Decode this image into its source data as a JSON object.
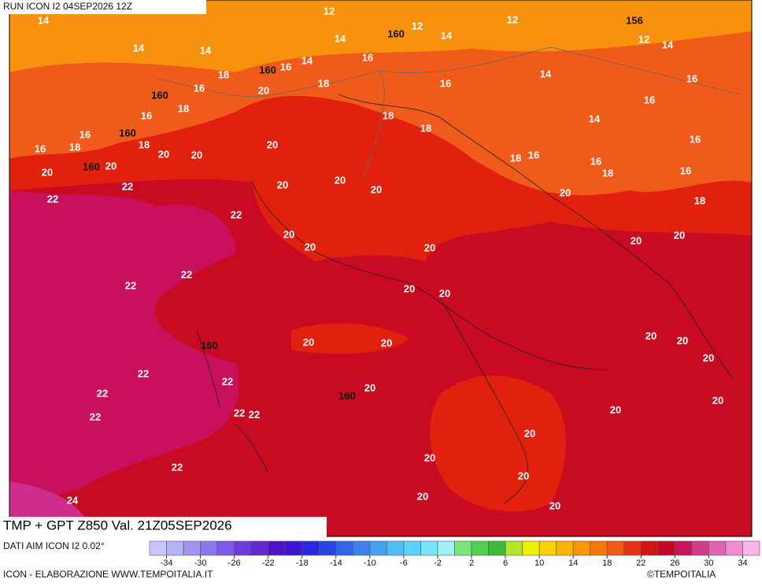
{
  "header": {
    "run": "RUN ICON I2 04SEP2026 12Z"
  },
  "map": {
    "temperature_labels": [
      14,
      12,
      12,
      12,
      12,
      14,
      14,
      14,
      14,
      14,
      16,
      14,
      16,
      18,
      18,
      16,
      20,
      16,
      14,
      16,
      16,
      18,
      16,
      18,
      14,
      18,
      16,
      16,
      20,
      18,
      18,
      16,
      20,
      20,
      18,
      16,
      16,
      18,
      16,
      20,
      20,
      20,
      20,
      22,
      20,
      20,
      18,
      22,
      22,
      20,
      20,
      20,
      20,
      20,
      22,
      22,
      20,
      20,
      20,
      20,
      20,
      20,
      20,
      22,
      22,
      20,
      22,
      20,
      22,
      22,
      22,
      20,
      20,
      20,
      22,
      20,
      20,
      20,
      24
    ],
    "geopotential_labels": [
      160,
      156,
      160,
      160,
      160,
      160,
      160,
      160
    ]
  },
  "footer": {
    "title": "TMP + GPT Z850 Val. 21Z05SEP2026",
    "source": "DATI AIM ICON I2 0.02°",
    "credits": "ICON - ELABORAZIONE WWW.TEMPOITALIA.IT",
    "copyright": "©TEMPOITALIA"
  },
  "colorbar": {
    "colors": [
      "#c8c8ff",
      "#b4b4f5",
      "#a096f0",
      "#8c78eb",
      "#7d5ae6",
      "#6e3cdc",
      "#6428d2",
      "#5014c8",
      "#3c14d2",
      "#2828dc",
      "#2846e6",
      "#3264e6",
      "#3c82eb",
      "#46a0f0",
      "#50bef5",
      "#5ad2fa",
      "#78e6fa",
      "#a0f0f5",
      "#78e678",
      "#50d250",
      "#3cbe3c",
      "#b4e628",
      "#f0f000",
      "#fad200",
      "#fab400",
      "#fa9600",
      "#f57800",
      "#f05a14",
      "#e63214",
      "#d21414",
      "#c00a28",
      "#c8145a",
      "#d23c8c",
      "#e164b4",
      "#f08cd2",
      "#fab4e6"
    ],
    "ticks": [
      -34,
      -30,
      -26,
      -22,
      -18,
      -14,
      -10,
      -6,
      -2,
      2,
      6,
      10,
      14,
      18,
      22,
      26,
      30,
      34
    ]
  }
}
